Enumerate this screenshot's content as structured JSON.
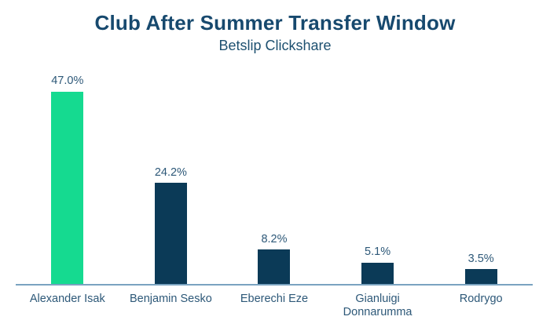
{
  "chart_data": {
    "type": "bar",
    "title": "Club After Summer Transfer Window",
    "subtitle": "Betslip Clickshare",
    "categories": [
      "Alexander Isak",
      "Benjamin Sesko",
      "Eberechi Eze",
      "Gianluigi Donnarumma",
      "Rodrygo"
    ],
    "values": [
      47.0,
      24.2,
      8.2,
      5.1,
      3.5
    ],
    "value_labels": [
      "47.0%",
      "24.2%",
      "8.2%",
      "5.1%",
      "3.5%"
    ],
    "xlabel": "",
    "ylabel": "",
    "ylim": [
      0,
      50
    ],
    "grid": false,
    "legend": false,
    "bar_colors": [
      "#15da90",
      "#0b3a57",
      "#0b3a57",
      "#0b3a57",
      "#0b3a57"
    ],
    "highlight_color": "#15da90",
    "default_bar_color": "#0b3a57",
    "axis_line_color": "#7aa3c0",
    "title_color": "#17496e",
    "label_color": "#2d5878",
    "background_color": "#ffffff"
  }
}
